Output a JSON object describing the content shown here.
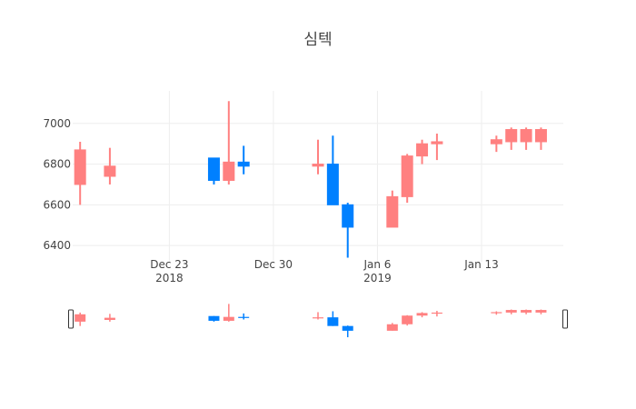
{
  "chart_data": {
    "type": "candlestick",
    "title": "심텍",
    "colors": {
      "increasing": "#ff8080",
      "decreasing": "#0080ff",
      "grid": "#eeeeee"
    },
    "x_ticks": [
      {
        "date": "2018-12-23",
        "label": "Dec 23",
        "sublabel": "2018"
      },
      {
        "date": "2018-12-30",
        "label": "Dec 30",
        "sublabel": ""
      },
      {
        "date": "2019-01-06",
        "label": "Jan 6",
        "sublabel": "2019"
      },
      {
        "date": "2019-01-13",
        "label": "Jan 13",
        "sublabel": ""
      }
    ],
    "y_ticks": [
      6400,
      6600,
      6800,
      7000
    ],
    "xlim": [
      "2018-12-16T12:00",
      "2019-01-18T12:00"
    ],
    "ylim": [
      6320,
      7160
    ],
    "range_slider": true,
    "candles": [
      {
        "date": "2018-12-17",
        "open": 6700,
        "high": 6910,
        "low": 6600,
        "close": 6870
      },
      {
        "date": "2018-12-19",
        "open": 6740,
        "high": 6880,
        "low": 6700,
        "close": 6790
      },
      {
        "date": "2018-12-26",
        "open": 6830,
        "high": 6830,
        "low": 6700,
        "close": 6720
      },
      {
        "date": "2018-12-27",
        "open": 6720,
        "high": 7110,
        "low": 6700,
        "close": 6810
      },
      {
        "date": "2018-12-28",
        "open": 6810,
        "high": 6890,
        "low": 6750,
        "close": 6790
      },
      {
        "date": "2019-01-02",
        "open": 6790,
        "high": 6920,
        "low": 6750,
        "close": 6800
      },
      {
        "date": "2019-01-03",
        "open": 6800,
        "high": 6940,
        "low": 6600,
        "close": 6600
      },
      {
        "date": "2019-01-04",
        "open": 6600,
        "high": 6610,
        "low": 6340,
        "close": 6490
      },
      {
        "date": "2019-01-07",
        "open": 6490,
        "high": 6670,
        "low": 6490,
        "close": 6640
      },
      {
        "date": "2019-01-08",
        "open": 6640,
        "high": 6850,
        "low": 6610,
        "close": 6840
      },
      {
        "date": "2019-01-09",
        "open": 6840,
        "high": 6920,
        "low": 6800,
        "close": 6900
      },
      {
        "date": "2019-01-10",
        "open": 6900,
        "high": 6950,
        "low": 6820,
        "close": 6910
      },
      {
        "date": "2019-01-14",
        "open": 6900,
        "high": 6940,
        "low": 6860,
        "close": 6920
      },
      {
        "date": "2019-01-15",
        "open": 6910,
        "high": 6980,
        "low": 6870,
        "close": 6970
      },
      {
        "date": "2019-01-16",
        "open": 6910,
        "high": 6980,
        "low": 6870,
        "close": 6970
      },
      {
        "date": "2019-01-17",
        "open": 6910,
        "high": 6980,
        "low": 6870,
        "close": 6970
      }
    ]
  }
}
